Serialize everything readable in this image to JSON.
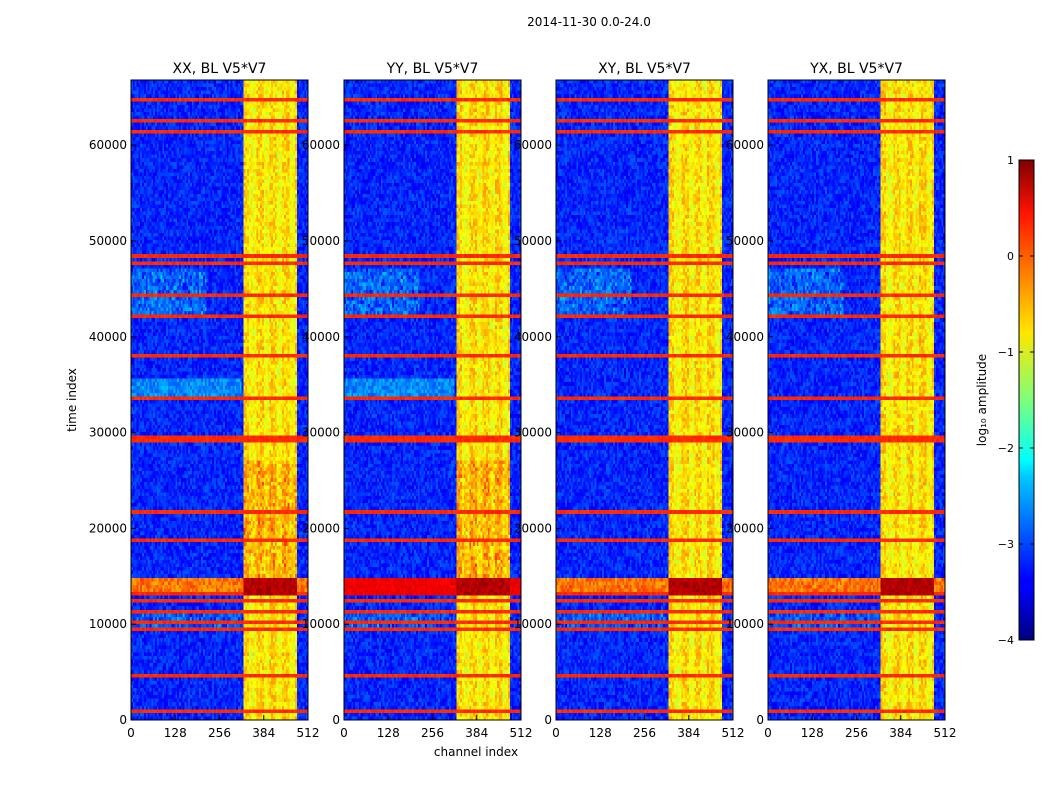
{
  "figure": {
    "suptitle": "2014-11-30 0.0-24.0"
  },
  "chart_data": {
    "type": "heatmap",
    "panel_titles": [
      "XX, BL V5*V7",
      "YY, BL V5*V7",
      "XY, BL V5*V7",
      "YX, BL V5*V7"
    ],
    "xlabel": "channel index",
    "ylabel": "time index",
    "xlim": [
      0,
      512
    ],
    "ylim": [
      0,
      66800
    ],
    "x_ticks": [
      0,
      128,
      256,
      384,
      512
    ],
    "y_ticks": [
      0,
      10000,
      20000,
      30000,
      40000,
      50000,
      60000
    ],
    "colorbar": {
      "label": "log₁₀ amplitude",
      "min": -4,
      "max": 1,
      "ticks": [
        1,
        0,
        -1,
        -2,
        -3,
        -4
      ],
      "tick_labels": [
        "1",
        "0",
        "−1",
        "−2",
        "−3",
        "−4"
      ]
    },
    "rfi_channel_band": [
      325,
      478
    ],
    "strong_time_band": [
      13000,
      15000
    ],
    "horizontal_lines": [
      1000,
      4600,
      9500,
      10300,
      11200,
      12600,
      13300,
      18800,
      21800,
      29000,
      29500,
      33500,
      38000,
      42000,
      44500,
      47700,
      48300,
      61300,
      62500,
      64700
    ],
    "background_level": -3.2
  }
}
